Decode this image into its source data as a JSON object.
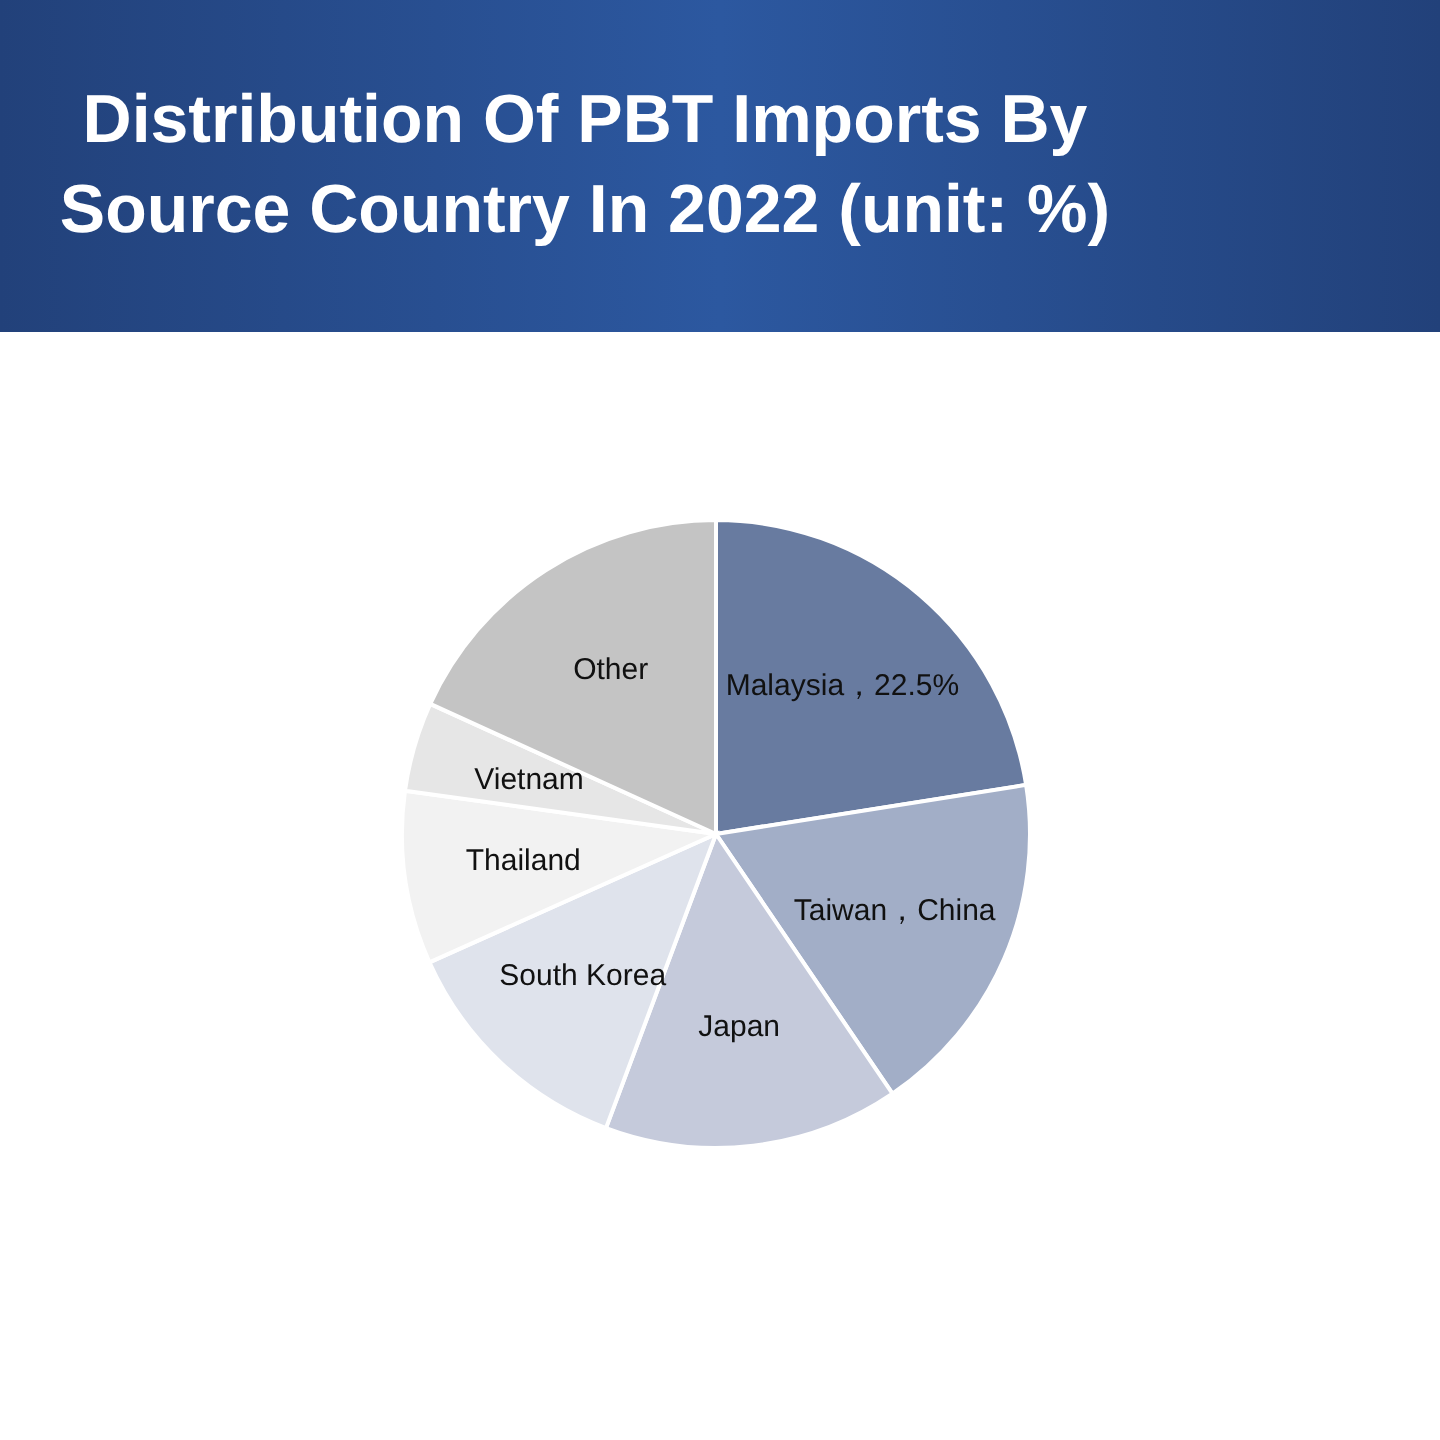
{
  "chart_data": {
    "type": "pie",
    "title": "Distribution Of PBT Imports By Source Country In 2022 (unit: %)",
    "categories": [
      "Malaysia",
      "Taiwan，China",
      "Japan",
      "South Korea",
      "Thailand",
      "Vietnam",
      "Other"
    ],
    "values": [
      22.5,
      18,
      15.2,
      12.6,
      8.9,
      4.6,
      18.2
    ],
    "value_labels": [
      "22.5%",
      null,
      null,
      null,
      null,
      null,
      null
    ],
    "colors": [
      "#687ba0",
      "#a2aec7",
      "#c5cadb",
      "#dfe3ec",
      "#f2f2f2",
      "#e6e6e6",
      "#c4c4c4"
    ]
  }
}
